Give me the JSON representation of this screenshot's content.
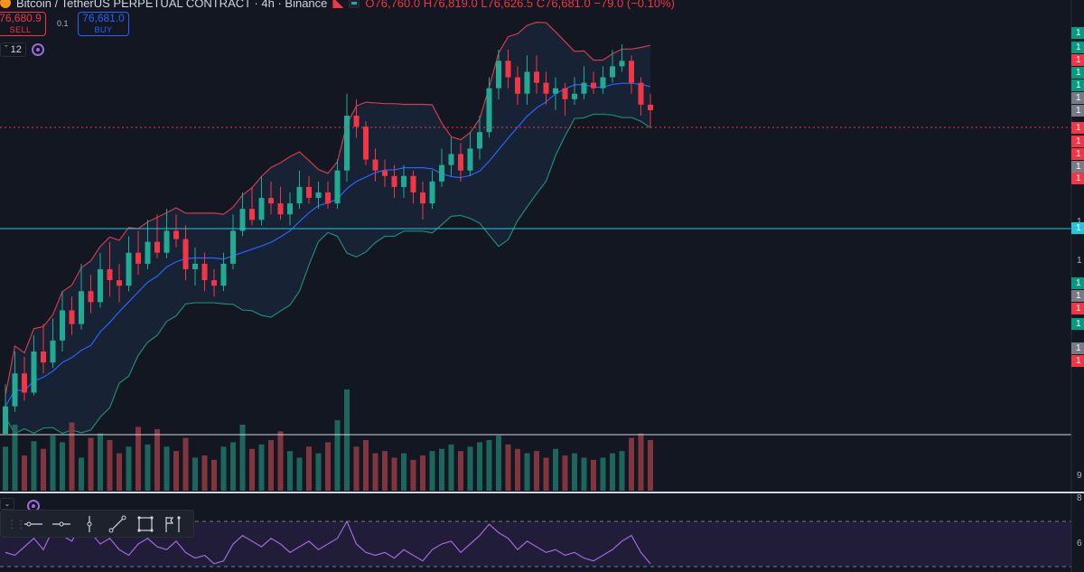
{
  "legend": {
    "title": "Bitcoin / TetherUS PERPETUAL CONTRACT · 4h · Binance",
    "ohlc": "O76,760.0 H76,819.0 L76,626.5 C76,681.0 −79.0 (−0.10%)"
  },
  "trade": {
    "sell_price": "76,680.9",
    "sell_label": "SELL",
    "spread": "0.1",
    "buy_price": "76,681.0",
    "buy_label": "BUY"
  },
  "indicators": {
    "count": "12"
  },
  "axis_labels": [
    "1",
    "1",
    "1",
    "1",
    "1",
    "1",
    "1",
    "1",
    "1",
    "1",
    "1",
    "1",
    "1",
    "1",
    "1",
    "1",
    "1",
    "1",
    "1",
    "1",
    "1",
    "9",
    "8",
    "6"
  ],
  "colors": {
    "background": "#131722",
    "up": "#22ab94",
    "down": "#f23645",
    "bb_upper": "#d13b4c",
    "bb_lower": "#1f8a72",
    "bb_mid": "#2962ff",
    "rsi": "#9c6ade",
    "hline": "#26c6da"
  },
  "icons": {
    "toolbar": [
      "grip-icon",
      "trend-line-icon",
      "ray-icon",
      "vertical-line-icon",
      "diagonal-line-icon",
      "rectangle-icon",
      "flag-marker-icon"
    ]
  },
  "chart_data": {
    "type": "candlestick",
    "series": [
      {
        "name": "",
        "values": [
          [
            0,
            10,
            18,
            5
          ],
          [
            10,
            22,
            30,
            8
          ],
          [
            22,
            15,
            28,
            12
          ],
          [
            15,
            30,
            36,
            14
          ],
          [
            30,
            26,
            40,
            22
          ],
          [
            26,
            34,
            42,
            24
          ],
          [
            34,
            45,
            52,
            30
          ],
          [
            45,
            40,
            50,
            36
          ],
          [
            40,
            52,
            62,
            38
          ],
          [
            52,
            48,
            58,
            44
          ],
          [
            48,
            60,
            66,
            46
          ],
          [
            60,
            56,
            70,
            50
          ],
          [
            56,
            54,
            62,
            48
          ],
          [
            54,
            66,
            72,
            52
          ],
          [
            66,
            62,
            74,
            58
          ],
          [
            62,
            70,
            78,
            60
          ],
          [
            70,
            66,
            80,
            64
          ],
          [
            66,
            74,
            82,
            64
          ],
          [
            74,
            71,
            80,
            68
          ],
          [
            71,
            60,
            76,
            56
          ],
          [
            60,
            62,
            68,
            54
          ],
          [
            62,
            56,
            66,
            52
          ],
          [
            56,
            54,
            60,
            50
          ],
          [
            54,
            62,
            66,
            52
          ],
          [
            62,
            74,
            80,
            60
          ],
          [
            74,
            82,
            88,
            72
          ],
          [
            82,
            78,
            90,
            76
          ],
          [
            78,
            86,
            94,
            76
          ],
          [
            86,
            84,
            92,
            80
          ],
          [
            84,
            80,
            90,
            78
          ],
          [
            80,
            84,
            88,
            76
          ],
          [
            84,
            90,
            96,
            82
          ],
          [
            90,
            86,
            94,
            84
          ],
          [
            86,
            88,
            92,
            82
          ],
          [
            88,
            84,
            92,
            82
          ],
          [
            84,
            96,
            100,
            82
          ],
          [
            96,
            116,
            124,
            92
          ],
          [
            116,
            112,
            122,
            108
          ],
          [
            112,
            100,
            114,
            98
          ],
          [
            100,
            96,
            104,
            92
          ],
          [
            96,
            94,
            100,
            90
          ],
          [
            94,
            90,
            98,
            86
          ],
          [
            90,
            94,
            98,
            86
          ],
          [
            94,
            88,
            96,
            84
          ],
          [
            88,
            84,
            92,
            78
          ],
          [
            84,
            92,
            96,
            82
          ],
          [
            92,
            98,
            104,
            90
          ],
          [
            98,
            102,
            108,
            94
          ],
          [
            102,
            96,
            106,
            92
          ],
          [
            96,
            104,
            110,
            94
          ],
          [
            104,
            110,
            116,
            100
          ],
          [
            110,
            126,
            130,
            108
          ],
          [
            126,
            136,
            140,
            122
          ],
          [
            136,
            130,
            140,
            126
          ],
          [
            130,
            124,
            134,
            120
          ],
          [
            124,
            132,
            138,
            120
          ],
          [
            132,
            128,
            138,
            124
          ],
          [
            128,
            124,
            132,
            120
          ],
          [
            124,
            126,
            130,
            118
          ],
          [
            126,
            122,
            128,
            116
          ],
          [
            122,
            124,
            130,
            120
          ],
          [
            124,
            128,
            134,
            122
          ],
          [
            128,
            126,
            132,
            124
          ],
          [
            126,
            130,
            134,
            124
          ],
          [
            130,
            134,
            140,
            128
          ],
          [
            134,
            136,
            142,
            132
          ],
          [
            136,
            128,
            138,
            124
          ],
          [
            128,
            120,
            130,
            116
          ],
          [
            120,
            118,
            124,
            112
          ]
        ]
      }
    ],
    "ylim": [
      0,
      145
    ],
    "bollinger": true,
    "volume": [
      40,
      60,
      32,
      45,
      38,
      50,
      44,
      62,
      30,
      48,
      52,
      46,
      34,
      40,
      58,
      42,
      56,
      40,
      36,
      48,
      30,
      32,
      28,
      40,
      44,
      60,
      38,
      42,
      46,
      54,
      36,
      30,
      40,
      34,
      44,
      64,
      92,
      40,
      46,
      34,
      36,
      30,
      34,
      28,
      32,
      36,
      38,
      42,
      36,
      40,
      44,
      46,
      50,
      42,
      38,
      34,
      36,
      30,
      38,
      32,
      34,
      30,
      28,
      30,
      34,
      36,
      48,
      52,
      46
    ],
    "rsi": [
      50,
      48,
      54,
      60,
      52,
      66,
      62,
      58,
      70,
      64,
      56,
      60,
      52,
      48,
      56,
      60,
      54,
      52,
      58,
      50,
      46,
      48,
      42,
      44,
      56,
      62,
      58,
      54,
      60,
      56,
      50,
      54,
      58,
      52,
      56,
      60,
      72,
      56,
      50,
      48,
      50,
      46,
      52,
      48,
      44,
      52,
      56,
      58,
      50,
      56,
      62,
      70,
      64,
      60,
      52,
      58,
      54,
      50,
      52,
      48,
      50,
      46,
      44,
      48,
      52,
      58,
      62,
      50,
      42
    ]
  }
}
